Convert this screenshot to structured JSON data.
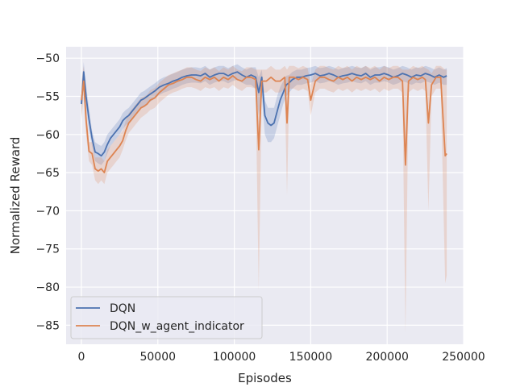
{
  "chart_data": {
    "type": "line",
    "title": "",
    "xlabel": "Episodes",
    "ylabel": "Normalized Reward",
    "xlim": [
      -10000,
      250000
    ],
    "ylim": [
      -87.5,
      -48.5
    ],
    "xticks": [
      0,
      50000,
      100000,
      150000,
      200000,
      250000
    ],
    "xtick_labels": [
      "0",
      "50000",
      "100000",
      "150000",
      "200000",
      "250000"
    ],
    "yticks": [
      -85,
      -80,
      -75,
      -70,
      -65,
      -60,
      -55,
      -50
    ],
    "ytick_labels": [
      "−85",
      "−80",
      "−75",
      "−70",
      "−65",
      "−60",
      "−55",
      "−50"
    ],
    "grid": true,
    "legend_position": "lower-left",
    "series": [
      {
        "name": "DQN",
        "color": "#4c72b0",
        "x": [
          0,
          1500,
          3000,
          5000,
          7000,
          9000,
          11000,
          13000,
          15000,
          17000,
          19000,
          21000,
          23000,
          25000,
          27000,
          29000,
          31000,
          33000,
          35000,
          37000,
          39000,
          41000,
          43000,
          45000,
          48000,
          51000,
          54000,
          57000,
          60000,
          63000,
          66000,
          69000,
          72000,
          75000,
          78000,
          81000,
          84000,
          87000,
          90000,
          93000,
          96000,
          99000,
          102000,
          105000,
          108000,
          111000,
          114000,
          116000,
          118000,
          120000,
          122000,
          124000,
          126000,
          128000,
          130000,
          132000,
          134000,
          136000,
          138000,
          141000,
          144000,
          147000,
          150000,
          153000,
          156000,
          159000,
          162000,
          165000,
          168000,
          171000,
          174000,
          177000,
          180000,
          183000,
          186000,
          189000,
          192000,
          195000,
          198000,
          201000,
          204000,
          207000,
          210000,
          213000,
          216000,
          219000,
          222000,
          225000,
          228000,
          231000,
          234000,
          237000,
          239000
        ],
        "values": [
          -56.0,
          -51.8,
          -55.0,
          -58.0,
          -60.5,
          -62.3,
          -62.5,
          -62.8,
          -62.3,
          -61.3,
          -60.5,
          -60.0,
          -59.5,
          -59.0,
          -58.2,
          -57.8,
          -57.5,
          -57.0,
          -56.5,
          -56.0,
          -55.5,
          -55.3,
          -55.0,
          -54.7,
          -54.3,
          -53.8,
          -53.5,
          -53.3,
          -53.0,
          -52.8,
          -52.5,
          -52.3,
          -52.2,
          -52.2,
          -52.3,
          -52.0,
          -52.5,
          -52.2,
          -52.0,
          -52.0,
          -52.3,
          -52.0,
          -51.8,
          -52.2,
          -52.5,
          -52.2,
          -52.5,
          -54.5,
          -52.5,
          -57.5,
          -58.5,
          -58.8,
          -58.5,
          -57.0,
          -55.5,
          -54.5,
          -53.5,
          -53.2,
          -52.8,
          -52.5,
          -52.5,
          -52.3,
          -52.2,
          -52.0,
          -52.3,
          -52.2,
          -52.0,
          -52.2,
          -52.5,
          -52.3,
          -52.2,
          -52.0,
          -52.2,
          -52.3,
          -52.0,
          -52.5,
          -52.2,
          -52.2,
          -52.0,
          -52.2,
          -52.5,
          -52.3,
          -52.0,
          -52.2,
          -52.5,
          -52.2,
          -52.3,
          -52.0,
          -52.2,
          -52.5,
          -52.2,
          -52.5,
          -52.3
        ],
        "ci_lower": [
          -57.5,
          -53.5,
          -56.5,
          -59.5,
          -61.5,
          -63.5,
          -63.8,
          -64.0,
          -63.5,
          -62.5,
          -61.5,
          -61.0,
          -60.5,
          -60.0,
          -59.3,
          -58.8,
          -58.5,
          -58.0,
          -57.5,
          -57.0,
          -56.5,
          -56.3,
          -56.0,
          -55.7,
          -55.3,
          -54.8,
          -54.5,
          -54.3,
          -54.0,
          -53.8,
          -53.5,
          -53.3,
          -53.2,
          -53.2,
          -53.3,
          -53.0,
          -53.5,
          -53.2,
          -53.0,
          -53.0,
          -53.3,
          -53.0,
          -52.8,
          -53.2,
          -53.5,
          -53.5,
          -54.0,
          -57.5,
          -55.0,
          -60.0,
          -61.0,
          -61.0,
          -60.5,
          -59.0,
          -57.5,
          -56.0,
          -55.0,
          -54.5,
          -54.0,
          -53.5,
          -53.5,
          -53.3,
          -53.2,
          -53.0,
          -53.3,
          -53.2,
          -53.0,
          -53.2,
          -53.5,
          -53.3,
          -53.2,
          -53.0,
          -53.2,
          -53.3,
          -53.0,
          -53.5,
          -53.2,
          -53.2,
          -53.0,
          -53.2,
          -53.5,
          -53.3,
          -53.0,
          -53.2,
          -53.5,
          -53.2,
          -53.3,
          -53.0,
          -53.2,
          -53.5,
          -53.2,
          -53.5,
          -53.5
        ],
        "ci_upper": [
          -54.5,
          -50.5,
          -53.5,
          -56.5,
          -59.5,
          -61.0,
          -61.3,
          -61.5,
          -61.0,
          -60.0,
          -59.5,
          -59.0,
          -58.5,
          -58.0,
          -57.2,
          -56.8,
          -56.5,
          -56.0,
          -55.5,
          -55.0,
          -54.5,
          -54.3,
          -54.0,
          -53.7,
          -53.3,
          -52.8,
          -52.5,
          -52.3,
          -52.0,
          -51.8,
          -51.5,
          -51.3,
          -51.2,
          -51.2,
          -51.3,
          -51.0,
          -51.5,
          -51.2,
          -51.0,
          -51.0,
          -51.3,
          -51.0,
          -50.8,
          -51.2,
          -51.5,
          -51.2,
          -51.2,
          -52.5,
          -51.5,
          -55.5,
          -56.5,
          -56.5,
          -56.5,
          -55.0,
          -53.8,
          -53.0,
          -52.3,
          -52.2,
          -51.8,
          -51.5,
          -51.5,
          -51.3,
          -51.2,
          -51.0,
          -51.3,
          -51.2,
          -51.0,
          -51.2,
          -51.5,
          -51.3,
          -51.2,
          -51.0,
          -51.2,
          -51.3,
          -51.0,
          -51.5,
          -51.2,
          -51.2,
          -51.0,
          -51.2,
          -51.5,
          -51.3,
          -51.0,
          -51.2,
          -51.5,
          -51.2,
          -51.3,
          -51.0,
          -51.2,
          -51.5,
          -51.2,
          -51.5,
          -51.3
        ]
      },
      {
        "name": "DQN_w_agent_indicator",
        "color": "#dd8452",
        "x": [
          0,
          1500,
          3000,
          5000,
          7000,
          9000,
          11000,
          13000,
          15000,
          17000,
          19000,
          21000,
          23000,
          25000,
          27000,
          29000,
          31000,
          33000,
          35000,
          37000,
          39000,
          41000,
          43000,
          45000,
          48000,
          51000,
          54000,
          57000,
          60000,
          63000,
          66000,
          69000,
          72000,
          75000,
          78000,
          81000,
          84000,
          87000,
          90000,
          93000,
          96000,
          99000,
          102000,
          105000,
          108000,
          111000,
          114000,
          116000,
          118000,
          121000,
          124000,
          127000,
          130000,
          133000,
          134500,
          136000,
          139000,
          142000,
          145000,
          148000,
          150000,
          153000,
          156000,
          159000,
          162000,
          165000,
          168000,
          171000,
          174000,
          177000,
          180000,
          183000,
          186000,
          189000,
          192000,
          195000,
          198000,
          201000,
          204000,
          207000,
          210000,
          212000,
          214000,
          217000,
          220000,
          223000,
          225000,
          227000,
          229000,
          232000,
          235000,
          238000,
          239000
        ],
        "values": [
          -55.5,
          -53.0,
          -58.0,
          -62.2,
          -62.5,
          -64.5,
          -64.8,
          -64.5,
          -65.0,
          -63.5,
          -63.0,
          -62.5,
          -62.0,
          -61.5,
          -60.8,
          -59.5,
          -58.5,
          -58.0,
          -57.5,
          -57.0,
          -56.5,
          -56.3,
          -56.0,
          -55.5,
          -55.2,
          -54.5,
          -54.0,
          -53.5,
          -53.3,
          -53.0,
          -52.8,
          -52.5,
          -52.5,
          -52.8,
          -53.0,
          -52.5,
          -52.8,
          -52.5,
          -53.0,
          -52.5,
          -52.8,
          -52.3,
          -52.8,
          -53.0,
          -52.5,
          -52.5,
          -52.8,
          -62.0,
          -53.0,
          -53.0,
          -52.5,
          -53.0,
          -53.0,
          -52.5,
          -58.5,
          -52.5,
          -52.5,
          -52.8,
          -52.5,
          -52.8,
          -55.5,
          -53.0,
          -52.5,
          -52.5,
          -52.8,
          -53.0,
          -52.5,
          -52.8,
          -52.5,
          -53.0,
          -52.5,
          -52.8,
          -52.5,
          -52.8,
          -52.5,
          -53.0,
          -52.5,
          -52.8,
          -52.5,
          -52.5,
          -53.0,
          -64.0,
          -53.0,
          -52.5,
          -52.8,
          -52.5,
          -52.8,
          -58.5,
          -53.5,
          -52.5,
          -52.5,
          -62.8,
          -62.5
        ],
        "ci_lower": [
          -58.0,
          -55.0,
          -60.0,
          -63.5,
          -64.0,
          -66.0,
          -66.5,
          -66.0,
          -66.5,
          -65.0,
          -64.5,
          -64.0,
          -63.5,
          -63.0,
          -62.0,
          -60.8,
          -59.8,
          -59.3,
          -58.8,
          -58.3,
          -57.8,
          -57.5,
          -57.2,
          -56.8,
          -56.5,
          -55.8,
          -55.3,
          -54.8,
          -54.5,
          -54.3,
          -54.0,
          -53.8,
          -53.8,
          -54.0,
          -54.3,
          -53.8,
          -54.0,
          -53.8,
          -54.3,
          -53.8,
          -54.0,
          -53.5,
          -54.0,
          -54.3,
          -53.8,
          -53.8,
          -54.0,
          -80.5,
          -54.5,
          -54.5,
          -54.0,
          -54.5,
          -54.5,
          -54.0,
          -68.0,
          -54.0,
          -54.0,
          -54.3,
          -54.0,
          -54.3,
          -57.5,
          -54.5,
          -54.0,
          -54.0,
          -54.3,
          -54.5,
          -54.0,
          -54.3,
          -54.0,
          -54.5,
          -54.0,
          -54.3,
          -54.0,
          -54.3,
          -54.0,
          -54.5,
          -54.0,
          -54.3,
          -54.0,
          -54.0,
          -54.5,
          -86.0,
          -54.5,
          -54.0,
          -54.3,
          -54.0,
          -54.3,
          -70.0,
          -55.0,
          -54.0,
          -54.0,
          -79.5,
          -78.5
        ],
        "ci_upper": [
          -53.0,
          -51.0,
          -56.0,
          -61.0,
          -61.0,
          -63.0,
          -63.0,
          -63.0,
          -63.5,
          -62.0,
          -61.5,
          -61.0,
          -60.5,
          -60.0,
          -59.5,
          -58.2,
          -57.2,
          -56.7,
          -56.2,
          -55.7,
          -55.2,
          -55.0,
          -54.8,
          -54.2,
          -53.9,
          -53.2,
          -52.7,
          -52.2,
          -52.0,
          -51.7,
          -51.5,
          -51.2,
          -51.2,
          -51.5,
          -51.7,
          -51.2,
          -51.5,
          -51.2,
          -51.7,
          -51.2,
          -51.5,
          -51.0,
          -51.5,
          -51.7,
          -51.2,
          -51.2,
          -51.5,
          -51.5,
          -51.5,
          -51.5,
          -51.0,
          -51.5,
          -51.5,
          -51.0,
          -51.5,
          -51.0,
          -51.0,
          -51.3,
          -51.0,
          -51.3,
          -53.5,
          -51.5,
          -51.0,
          -51.0,
          -51.3,
          -51.5,
          -51.0,
          -51.3,
          -51.0,
          -51.5,
          -51.0,
          -51.3,
          -51.0,
          -51.3,
          -51.0,
          -51.5,
          -51.0,
          -51.3,
          -51.0,
          -51.0,
          -51.5,
          -51.5,
          -51.5,
          -51.0,
          -51.3,
          -51.0,
          -51.3,
          -51.5,
          -52.0,
          -51.0,
          -51.0,
          -51.5,
          -51.5
        ]
      }
    ]
  }
}
